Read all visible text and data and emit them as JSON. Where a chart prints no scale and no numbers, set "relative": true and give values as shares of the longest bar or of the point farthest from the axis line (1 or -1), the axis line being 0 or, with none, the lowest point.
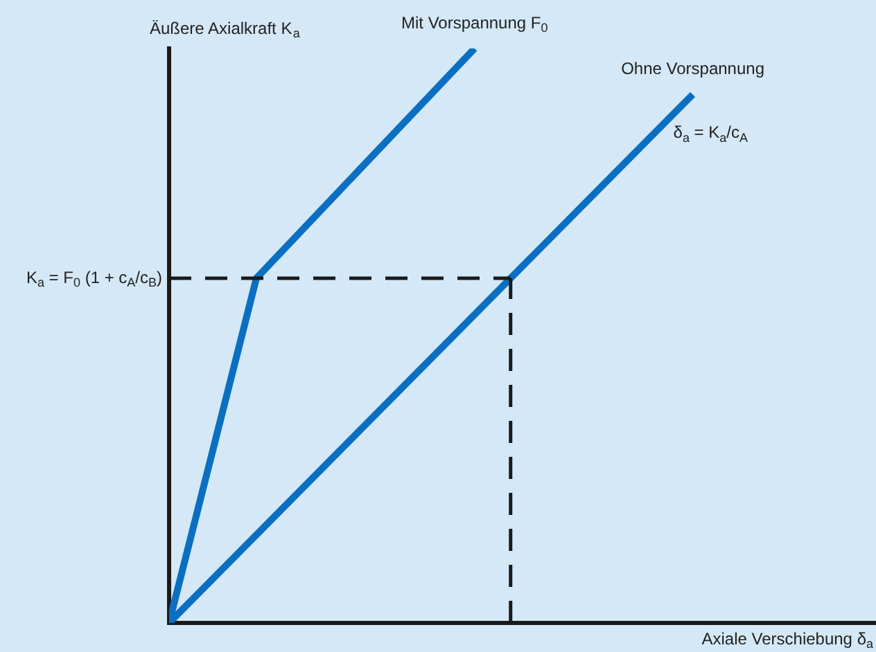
{
  "chart_data": {
    "type": "line",
    "relative": true,
    "xlabel": "Axiale Verschiebung δ$_{a}$",
    "ylabel": "Äußere Axialkraft K$_{a}$",
    "legend": false,
    "grid": false,
    "marker": "none",
    "categories": [
      null,
      null,
      null,
      null,
      null,
      null,
      null,
      null,
      null,
      null,
      null,
      null,
      null
    ],
    "series": [
      {
        "name": "Mit Vorspannung F$_{0}$",
        "color": "#0a6fc2",
        "values": [
          0,
          null,
          0.6,
          null,
          null,
          null,
          null,
          1,
          null,
          null,
          null,
          null,
          null
        ]
      },
      {
        "name": "Ohne Vorspannung",
        "color": "#0a6fc2",
        "values": [
          0,
          null,
          null,
          null,
          null,
          null,
          null,
          null,
          null,
          null,
          null,
          null,
          0.92
        ]
      }
    ],
    "ref_lines": [
      {
        "axis": "y",
        "value": 0.6,
        "label": "K$_{a}$ = F$_{0}$ (1 + c$_{A}$/c$_{B}$)",
        "color": "#1a1a1a",
        "line_style": "dashed"
      },
      {
        "axis": "x",
        "color": "#1a1a1a",
        "line_style": "dashed"
      }
    ],
    "annotations": [
      "δ$_{a}$ = K$_{a}$/c$_{A}$"
    ]
  }
}
